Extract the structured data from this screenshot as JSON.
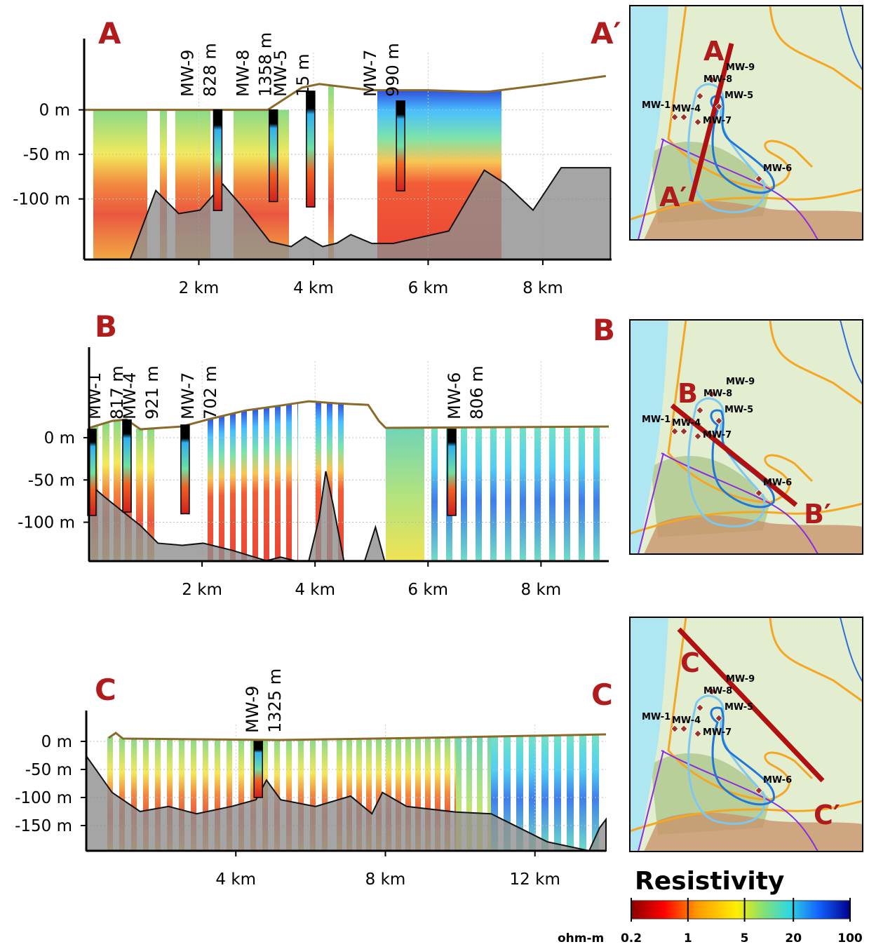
{
  "chart_data": [
    {
      "type": "section",
      "title": "A",
      "end_label": "A′",
      "xlim": [
        0,
        9.2
      ],
      "ylim": [
        -168,
        80
      ],
      "xticks": [
        {
          "value": 2,
          "label": "2 km"
        },
        {
          "value": 4,
          "label": "4 km"
        },
        {
          "value": 6,
          "label": "6 km"
        },
        {
          "value": 8,
          "label": "8 km"
        }
      ],
      "yticks": [
        {
          "value": 0,
          "label": "0 m"
        },
        {
          "value": -50,
          "label": "-50 m"
        },
        {
          "value": -100,
          "label": "-100 m"
        }
      ],
      "grid": true,
      "surface": {
        "x": [
          0,
          1.3,
          3.2,
          3.8,
          4.1,
          5,
          6,
          7,
          8,
          9.1
        ],
        "y": [
          0,
          0,
          0,
          25,
          29,
          22,
          22,
          20,
          28,
          38
        ]
      },
      "basement": {
        "x": [
          0.8,
          1.25,
          1.65,
          2.02,
          2.42,
          2.81,
          3.24,
          3.61,
          3.86,
          4.16,
          4.41,
          4.65,
          5.02,
          5.39,
          6.36,
          6.98,
          7.34,
          7.83,
          8.32,
          9.18
        ],
        "y": [
          -168,
          -90.6,
          -116.5,
          -112.6,
          -83.5,
          -112.6,
          -148,
          -153.5,
          -142.5,
          -153.5,
          -149.6,
          -140,
          -150,
          -150,
          -136,
          -67.7,
          -82.7,
          -112.6,
          -65,
          -65
        ]
      },
      "wells": [
        {
          "name": "MW-9",
          "label": "828 m",
          "x": 2.33,
          "top": 0,
          "bottom": -113
        },
        {
          "name": "MW-8",
          "label": "1358 m",
          "x": 3.3,
          "top": 0,
          "bottom": -103
        },
        {
          "name": "MW-5",
          "label": "15 m",
          "x": 3.95,
          "top": 21,
          "bottom": -109
        },
        {
          "name": "MW-7",
          "label": "990 m",
          "x": 5.52,
          "top": 10,
          "bottom": -91
        }
      ]
    },
    {
      "type": "section",
      "title": "B",
      "end_label": "B",
      "xlim": [
        0,
        9.2
      ],
      "ylim": [
        -146,
        107
      ],
      "xticks": [
        {
          "value": 2,
          "label": "2 km"
        },
        {
          "value": 4,
          "label": "4 km"
        },
        {
          "value": 6,
          "label": "6 km"
        },
        {
          "value": 8,
          "label": "8 km"
        }
      ],
      "yticks": [
        {
          "value": 0,
          "label": "0 m"
        },
        {
          "value": -50,
          "label": "-50 m"
        },
        {
          "value": -100,
          "label": "-100 m"
        }
      ],
      "grid": true,
      "surface": {
        "x": [
          0,
          0.41,
          0.66,
          0.91,
          1.27,
          1.64,
          2.15,
          2.77,
          3.39,
          3.89,
          4.39,
          4.94,
          5.13,
          5.25,
          9.2
        ],
        "y": [
          11.6,
          19.8,
          21.5,
          9.9,
          11.6,
          13.2,
          22.3,
          32.2,
          38,
          43,
          40.5,
          38.8,
          19.8,
          11.6,
          13.2
        ]
      },
      "basement": {
        "x": [
          0,
          0.29,
          0.6,
          0.91,
          1.22,
          1.65,
          2.02,
          2.52,
          3.14,
          3.39,
          3.64,
          3.89,
          4.07,
          4.19,
          4.32,
          4.51,
          4.88,
          5.07,
          5.23
        ],
        "y": [
          -54.5,
          -71,
          -87.6,
          -104,
          -124.8,
          -127.3,
          -124.8,
          -133,
          -145.5,
          -141.3,
          -145.5,
          -145.5,
          -95.9,
          -39.7,
          -79.3,
          -145.5,
          -145.5,
          -105.8,
          -145.5
        ]
      },
      "wells": [
        {
          "name": "MW-1",
          "label": "817 m",
          "x": 0.05,
          "top": 10,
          "bottom": -92
        },
        {
          "name": "MW-4",
          "label": "921 m",
          "x": 0.67,
          "top": 21,
          "bottom": -88
        },
        {
          "name": "MW-7",
          "label": "702 m",
          "x": 1.7,
          "top": 15,
          "bottom": -90
        },
        {
          "name": "MW-6",
          "label": "806 m",
          "x": 6.42,
          "top": 10,
          "bottom": -92
        }
      ]
    },
    {
      "type": "section",
      "title": "C",
      "end_label": "C",
      "xlim": [
        0,
        13.9
      ],
      "ylim": [
        -195,
        55
      ],
      "xticks": [
        {
          "value": 4,
          "label": "4 km"
        },
        {
          "value": 8,
          "label": "8 km"
        },
        {
          "value": 12,
          "label": "12 km"
        }
      ],
      "yticks": [
        {
          "value": 0,
          "label": "0 m"
        },
        {
          "value": -50,
          "label": "-50 m"
        },
        {
          "value": -100,
          "label": "-100 m"
        },
        {
          "value": -150,
          "label": "-150 m"
        }
      ],
      "grid": true,
      "surface": {
        "x": [
          0.6,
          0.79,
          0.98,
          5.2,
          8.95,
          13.9
        ],
        "y": [
          6.2,
          15,
          5,
          2.5,
          6.2,
          12.5
        ]
      },
      "basement": {
        "x": [
          0,
          0.69,
          1.44,
          2.2,
          2.95,
          3.88,
          4.54,
          4.82,
          5.2,
          6.13,
          7.07,
          7.64,
          7.92,
          8.57,
          9.89,
          10.83,
          11.58,
          12.33,
          13.45,
          13.73,
          13.9
        ],
        "y": [
          -26,
          -91,
          -125,
          -116,
          -129,
          -116,
          -104,
          -69,
          -104,
          -116,
          -97.5,
          -129,
          -91,
          -116,
          -126,
          -129,
          -154,
          -179,
          -195,
          -154,
          -139
        ]
      },
      "wells": [
        {
          "name": "MW-9",
          "label": "1325 m",
          "x": 4.6,
          "top": 0,
          "bottom": -100
        }
      ]
    }
  ],
  "maps": [
    {
      "start": "A",
      "end": "A′",
      "wells": [
        "MW-9",
        "MW-8",
        "MW-5",
        "MW-1",
        "MW-4",
        "MW-7",
        "MW-6"
      ]
    },
    {
      "start": "B",
      "end": "B′",
      "wells": [
        "MW-9",
        "MW-8",
        "MW-5",
        "MW-1",
        "MW-4",
        "MW-7",
        "MW-6"
      ]
    },
    {
      "start": "C",
      "end": "C′",
      "wells": [
        "MW-9",
        "MW-8",
        "MW-5",
        "MW-1",
        "MW-4",
        "MW-7",
        "MW-6"
      ]
    }
  ],
  "colorbar": {
    "title": "Resistivity",
    "unit": "ohm-m",
    "lim": [
      0.2,
      100
    ],
    "log": true,
    "ticks": [
      0.2,
      1,
      5,
      20,
      100
    ]
  }
}
